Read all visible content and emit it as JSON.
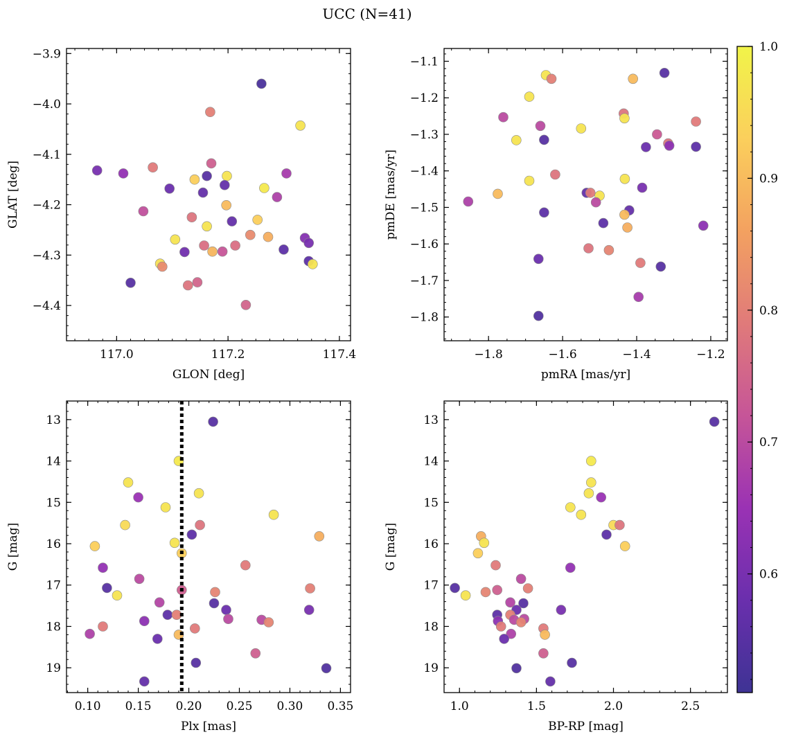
{
  "figure_title": "UCC (N=41)",
  "colors": {
    "cmap_stops": [
      "#3e3394",
      "#6a2fad",
      "#9a32b4",
      "#c65598",
      "#e07a7a",
      "#f3a160",
      "#fbcf5c",
      "#f1f449"
    ],
    "marker_edge": "#8a8a8a",
    "frame": "#000000"
  },
  "colorbar": {
    "min": 0.51,
    "max": 1.0,
    "ticks": [
      0.6,
      0.7,
      0.8,
      0.9,
      1.0
    ],
    "tick_labels": [
      "0.6",
      "0.7",
      "0.8",
      "0.9",
      "1.0"
    ]
  },
  "chart_data": [
    {
      "type": "scatter",
      "title": "",
      "xlabel": "GLON [deg]",
      "ylabel": "GLAT [deg]",
      "xlim": [
        116.91,
        117.42
      ],
      "ylim": [
        -4.47,
        -3.89
      ],
      "y_inverted": false,
      "xticks": [
        117.0,
        117.2,
        117.4
      ],
      "xtick_labels": [
        "117.0",
        "117.2",
        "117.4"
      ],
      "xminor": 0.025,
      "yticks": [
        -3.9,
        -4.0,
        -4.1,
        -4.2,
        -4.3,
        -4.4
      ],
      "ytick_labels": [
        "−3.9",
        "−4.0",
        "−4.1",
        "−4.2",
        "−4.3",
        "−4.4"
      ],
      "yminor": 0.02,
      "points": [
        {
          "x": 117.26,
          "y": -3.96,
          "c": 0.53
        },
        {
          "x": 117.168,
          "y": -4.016,
          "c": 0.8
        },
        {
          "x": 117.33,
          "y": -4.043,
          "c": 0.97
        },
        {
          "x": 116.965,
          "y": -4.132,
          "c": 0.6
        },
        {
          "x": 117.012,
          "y": -4.138,
          "c": 0.64
        },
        {
          "x": 117.065,
          "y": -4.126,
          "c": 0.79
        },
        {
          "x": 117.17,
          "y": -4.118,
          "c": 0.74
        },
        {
          "x": 117.305,
          "y": -4.138,
          "c": 0.67
        },
        {
          "x": 117.162,
          "y": -4.143,
          "c": 0.55
        },
        {
          "x": 117.198,
          "y": -4.143,
          "c": 0.97
        },
        {
          "x": 117.14,
          "y": -4.15,
          "c": 0.93
        },
        {
          "x": 117.194,
          "y": -4.161,
          "c": 0.57
        },
        {
          "x": 117.095,
          "y": -4.168,
          "c": 0.58
        },
        {
          "x": 117.265,
          "y": -4.167,
          "c": 0.98
        },
        {
          "x": 117.155,
          "y": -4.176,
          "c": 0.57
        },
        {
          "x": 117.288,
          "y": -4.185,
          "c": 0.68
        },
        {
          "x": 117.197,
          "y": -4.201,
          "c": 0.9
        },
        {
          "x": 117.048,
          "y": -4.213,
          "c": 0.71
        },
        {
          "x": 117.135,
          "y": -4.225,
          "c": 0.78
        },
        {
          "x": 117.253,
          "y": -4.23,
          "c": 0.93
        },
        {
          "x": 117.207,
          "y": -4.233,
          "c": 0.57
        },
        {
          "x": 117.162,
          "y": -4.243,
          "c": 0.97
        },
        {
          "x": 117.24,
          "y": -4.26,
          "c": 0.82
        },
        {
          "x": 117.272,
          "y": -4.264,
          "c": 0.88
        },
        {
          "x": 117.338,
          "y": -4.266,
          "c": 0.62
        },
        {
          "x": 117.105,
          "y": -4.269,
          "c": 0.97
        },
        {
          "x": 117.345,
          "y": -4.276,
          "c": 0.6
        },
        {
          "x": 117.157,
          "y": -4.281,
          "c": 0.77
        },
        {
          "x": 117.213,
          "y": -4.281,
          "c": 0.77
        },
        {
          "x": 117.3,
          "y": -4.289,
          "c": 0.56
        },
        {
          "x": 117.122,
          "y": -4.294,
          "c": 0.59
        },
        {
          "x": 117.19,
          "y": -4.293,
          "c": 0.72
        },
        {
          "x": 117.172,
          "y": -4.293,
          "c": 0.89
        },
        {
          "x": 117.345,
          "y": -4.312,
          "c": 0.56
        },
        {
          "x": 117.078,
          "y": -4.317,
          "c": 0.96
        },
        {
          "x": 117.352,
          "y": -4.318,
          "c": 0.97
        },
        {
          "x": 117.082,
          "y": -4.323,
          "c": 0.82
        },
        {
          "x": 117.025,
          "y": -4.355,
          "c": 0.55
        },
        {
          "x": 117.145,
          "y": -4.354,
          "c": 0.75
        },
        {
          "x": 117.128,
          "y": -4.36,
          "c": 0.78
        },
        {
          "x": 117.232,
          "y": -4.399,
          "c": 0.75
        }
      ]
    },
    {
      "type": "scatter",
      "title": "",
      "xlabel": "pmRA [mas/yr]",
      "ylabel": "pmDE [mas/yr]",
      "xlim": [
        -1.92,
        -1.155
      ],
      "ylim": [
        -1.865,
        -1.065
      ],
      "y_inverted": false,
      "xticks": [
        -1.8,
        -1.6,
        -1.4,
        -1.2
      ],
      "xtick_labels": [
        "−1.8",
        "−1.6",
        "−1.4",
        "−1.2"
      ],
      "xminor": 0.05,
      "yticks": [
        -1.1,
        -1.2,
        -1.3,
        -1.4,
        -1.5,
        -1.6,
        -1.7,
        -1.8
      ],
      "ytick_labels": [
        "−1.1",
        "−1.2",
        "−1.3",
        "−1.4",
        "−1.5",
        "−1.6",
        "−1.7",
        "−1.8"
      ],
      "yminor": 0.02,
      "points": [
        {
          "x": -1.645,
          "y": -1.138,
          "c": 0.97
        },
        {
          "x": -1.63,
          "y": -1.148,
          "c": 0.8
        },
        {
          "x": -1.41,
          "y": -1.148,
          "c": 0.9
        },
        {
          "x": -1.325,
          "y": -1.132,
          "c": 0.55
        },
        {
          "x": -1.69,
          "y": -1.197,
          "c": 0.97
        },
        {
          "x": -1.435,
          "y": -1.243,
          "c": 0.78
        },
        {
          "x": -1.76,
          "y": -1.253,
          "c": 0.7
        },
        {
          "x": -1.433,
          "y": -1.256,
          "c": 0.97
        },
        {
          "x": -1.24,
          "y": -1.265,
          "c": 0.79
        },
        {
          "x": -1.66,
          "y": -1.277,
          "c": 0.7
        },
        {
          "x": -1.55,
          "y": -1.284,
          "c": 0.97
        },
        {
          "x": -1.345,
          "y": -1.3,
          "c": 0.73
        },
        {
          "x": -1.725,
          "y": -1.316,
          "c": 0.97
        },
        {
          "x": -1.65,
          "y": -1.315,
          "c": 0.55
        },
        {
          "x": -1.315,
          "y": -1.325,
          "c": 0.78
        },
        {
          "x": -1.312,
          "y": -1.331,
          "c": 0.63
        },
        {
          "x": -1.375,
          "y": -1.335,
          "c": 0.58
        },
        {
          "x": -1.24,
          "y": -1.334,
          "c": 0.56
        },
        {
          "x": -1.62,
          "y": -1.41,
          "c": 0.78
        },
        {
          "x": -1.69,
          "y": -1.427,
          "c": 0.97
        },
        {
          "x": -1.432,
          "y": -1.422,
          "c": 0.97
        },
        {
          "x": -1.385,
          "y": -1.446,
          "c": 0.6
        },
        {
          "x": -1.775,
          "y": -1.463,
          "c": 0.9
        },
        {
          "x": -1.535,
          "y": -1.46,
          "c": 0.57
        },
        {
          "x": -1.525,
          "y": -1.46,
          "c": 0.79
        },
        {
          "x": -1.5,
          "y": -1.468,
          "c": 0.97
        },
        {
          "x": -1.855,
          "y": -1.484,
          "c": 0.68
        },
        {
          "x": -1.51,
          "y": -1.486,
          "c": 0.7
        },
        {
          "x": -1.42,
          "y": -1.508,
          "c": 0.57
        },
        {
          "x": -1.65,
          "y": -1.514,
          "c": 0.56
        },
        {
          "x": -1.433,
          "y": -1.52,
          "c": 0.9
        },
        {
          "x": -1.49,
          "y": -1.543,
          "c": 0.56
        },
        {
          "x": -1.22,
          "y": -1.55,
          "c": 0.63
        },
        {
          "x": -1.425,
          "y": -1.555,
          "c": 0.88
        },
        {
          "x": -1.53,
          "y": -1.612,
          "c": 0.78
        },
        {
          "x": -1.475,
          "y": -1.617,
          "c": 0.81
        },
        {
          "x": -1.665,
          "y": -1.641,
          "c": 0.58
        },
        {
          "x": -1.39,
          "y": -1.652,
          "c": 0.79
        },
        {
          "x": -1.335,
          "y": -1.662,
          "c": 0.55
        },
        {
          "x": -1.395,
          "y": -1.745,
          "c": 0.67
        },
        {
          "x": -1.665,
          "y": -1.797,
          "c": 0.54
        }
      ]
    },
    {
      "type": "scatter",
      "title": "",
      "xlabel": "Plx [mas]",
      "ylabel": "G [mag]",
      "xlim": [
        0.079,
        0.36
      ],
      "ylim": [
        19.6,
        12.55
      ],
      "y_inverted": true,
      "xticks": [
        0.1,
        0.15,
        0.2,
        0.25,
        0.3,
        0.35
      ],
      "xtick_labels": [
        "0.10",
        "0.15",
        "0.20",
        "0.25",
        "0.30",
        "0.35"
      ],
      "xminor": 0.01,
      "yticks": [
        13,
        14,
        15,
        16,
        17,
        18,
        19
      ],
      "ytick_labels": [
        "13",
        "14",
        "15",
        "16",
        "17",
        "18",
        "19"
      ],
      "yminor": 0.2,
      "vline": {
        "x": 0.193,
        "style": "dotted"
      },
      "points": [
        {
          "x": 0.224,
          "y": 13.05,
          "c": 0.55
        },
        {
          "x": 0.19,
          "y": 14.0,
          "c": 0.98
        },
        {
          "x": 0.14,
          "y": 14.52,
          "c": 0.97
        },
        {
          "x": 0.21,
          "y": 14.78,
          "c": 0.97
        },
        {
          "x": 0.15,
          "y": 14.88,
          "c": 0.65
        },
        {
          "x": 0.177,
          "y": 15.12,
          "c": 0.97
        },
        {
          "x": 0.284,
          "y": 15.3,
          "c": 0.97
        },
        {
          "x": 0.137,
          "y": 15.55,
          "c": 0.95
        },
        {
          "x": 0.211,
          "y": 15.55,
          "c": 0.78
        },
        {
          "x": 0.203,
          "y": 15.78,
          "c": 0.56
        },
        {
          "x": 0.329,
          "y": 15.82,
          "c": 0.88
        },
        {
          "x": 0.186,
          "y": 15.98,
          "c": 0.97
        },
        {
          "x": 0.107,
          "y": 16.06,
          "c": 0.93
        },
        {
          "x": 0.193,
          "y": 16.23,
          "c": 0.93
        },
        {
          "x": 0.256,
          "y": 16.52,
          "c": 0.79
        },
        {
          "x": 0.115,
          "y": 16.58,
          "c": 0.64
        },
        {
          "x": 0.151,
          "y": 16.85,
          "c": 0.7
        },
        {
          "x": 0.119,
          "y": 17.07,
          "c": 0.55
        },
        {
          "x": 0.32,
          "y": 17.08,
          "c": 0.8
        },
        {
          "x": 0.193,
          "y": 17.12,
          "c": 0.74
        },
        {
          "x": 0.226,
          "y": 17.17,
          "c": 0.81
        },
        {
          "x": 0.129,
          "y": 17.25,
          "c": 0.97
        },
        {
          "x": 0.171,
          "y": 17.42,
          "c": 0.69
        },
        {
          "x": 0.225,
          "y": 17.44,
          "c": 0.55
        },
        {
          "x": 0.237,
          "y": 17.6,
          "c": 0.58
        },
        {
          "x": 0.319,
          "y": 17.6,
          "c": 0.6
        },
        {
          "x": 0.179,
          "y": 17.72,
          "c": 0.56
        },
        {
          "x": 0.188,
          "y": 17.72,
          "c": 0.8
        },
        {
          "x": 0.239,
          "y": 17.82,
          "c": 0.7
        },
        {
          "x": 0.272,
          "y": 17.84,
          "c": 0.7
        },
        {
          "x": 0.156,
          "y": 17.87,
          "c": 0.63
        },
        {
          "x": 0.279,
          "y": 17.9,
          "c": 0.81
        },
        {
          "x": 0.115,
          "y": 18.0,
          "c": 0.79
        },
        {
          "x": 0.206,
          "y": 18.05,
          "c": 0.79
        },
        {
          "x": 0.102,
          "y": 18.18,
          "c": 0.68
        },
        {
          "x": 0.19,
          "y": 18.2,
          "c": 0.9
        },
        {
          "x": 0.169,
          "y": 18.3,
          "c": 0.58
        },
        {
          "x": 0.266,
          "y": 18.65,
          "c": 0.74
        },
        {
          "x": 0.207,
          "y": 18.88,
          "c": 0.55
        },
        {
          "x": 0.336,
          "y": 19.01,
          "c": 0.54
        },
        {
          "x": 0.156,
          "y": 19.33,
          "c": 0.57
        }
      ]
    },
    {
      "type": "scatter",
      "title": "",
      "xlabel": "BP-RP [mag]",
      "ylabel": "G [mag]",
      "xlim": [
        0.9,
        2.74
      ],
      "ylim": [
        19.6,
        12.55
      ],
      "y_inverted": true,
      "xticks": [
        1.0,
        1.5,
        2.0,
        2.5
      ],
      "xtick_labels": [
        "1.0",
        "1.5",
        "2.0",
        "2.5"
      ],
      "xminor": 0.1,
      "yticks": [
        13,
        14,
        15,
        16,
        17,
        18,
        19
      ],
      "ytick_labels": [
        "13",
        "14",
        "15",
        "16",
        "17",
        "18",
        "19"
      ],
      "yminor": 0.2,
      "points": [
        {
          "x": 2.655,
          "y": 13.05,
          "c": 0.55
        },
        {
          "x": 1.855,
          "y": 14.0,
          "c": 0.98
        },
        {
          "x": 1.855,
          "y": 14.52,
          "c": 0.97
        },
        {
          "x": 1.84,
          "y": 14.78,
          "c": 0.97
        },
        {
          "x": 1.92,
          "y": 14.88,
          "c": 0.65
        },
        {
          "x": 1.72,
          "y": 15.12,
          "c": 0.97
        },
        {
          "x": 1.79,
          "y": 15.3,
          "c": 0.97
        },
        {
          "x": 2.0,
          "y": 15.55,
          "c": 0.95
        },
        {
          "x": 2.04,
          "y": 15.55,
          "c": 0.78
        },
        {
          "x": 1.955,
          "y": 15.78,
          "c": 0.56
        },
        {
          "x": 1.14,
          "y": 15.82,
          "c": 0.88
        },
        {
          "x": 1.16,
          "y": 15.98,
          "c": 0.97
        },
        {
          "x": 2.075,
          "y": 16.06,
          "c": 0.93
        },
        {
          "x": 1.12,
          "y": 16.23,
          "c": 0.93
        },
        {
          "x": 1.235,
          "y": 16.52,
          "c": 0.79
        },
        {
          "x": 1.72,
          "y": 16.58,
          "c": 0.64
        },
        {
          "x": 1.4,
          "y": 16.85,
          "c": 0.7
        },
        {
          "x": 0.97,
          "y": 17.07,
          "c": 0.55
        },
        {
          "x": 1.445,
          "y": 17.08,
          "c": 0.8
        },
        {
          "x": 1.245,
          "y": 17.12,
          "c": 0.74
        },
        {
          "x": 1.17,
          "y": 17.17,
          "c": 0.81
        },
        {
          "x": 1.04,
          "y": 17.25,
          "c": 0.97
        },
        {
          "x": 1.33,
          "y": 17.42,
          "c": 0.69
        },
        {
          "x": 1.415,
          "y": 17.44,
          "c": 0.55
        },
        {
          "x": 1.37,
          "y": 17.6,
          "c": 0.58
        },
        {
          "x": 1.66,
          "y": 17.6,
          "c": 0.6
        },
        {
          "x": 1.245,
          "y": 17.72,
          "c": 0.56
        },
        {
          "x": 1.33,
          "y": 17.72,
          "c": 0.8
        },
        {
          "x": 1.42,
          "y": 17.82,
          "c": 0.7
        },
        {
          "x": 1.355,
          "y": 17.84,
          "c": 0.7
        },
        {
          "x": 1.25,
          "y": 17.87,
          "c": 0.63
        },
        {
          "x": 1.4,
          "y": 17.9,
          "c": 0.81
        },
        {
          "x": 1.27,
          "y": 18.0,
          "c": 0.79
        },
        {
          "x": 1.545,
          "y": 18.05,
          "c": 0.79
        },
        {
          "x": 1.335,
          "y": 18.18,
          "c": 0.68
        },
        {
          "x": 1.555,
          "y": 18.2,
          "c": 0.9
        },
        {
          "x": 1.29,
          "y": 18.3,
          "c": 0.58
        },
        {
          "x": 1.545,
          "y": 18.65,
          "c": 0.74
        },
        {
          "x": 1.73,
          "y": 18.88,
          "c": 0.55
        },
        {
          "x": 1.37,
          "y": 19.01,
          "c": 0.54
        },
        {
          "x": 1.59,
          "y": 19.33,
          "c": 0.57
        }
      ]
    }
  ]
}
